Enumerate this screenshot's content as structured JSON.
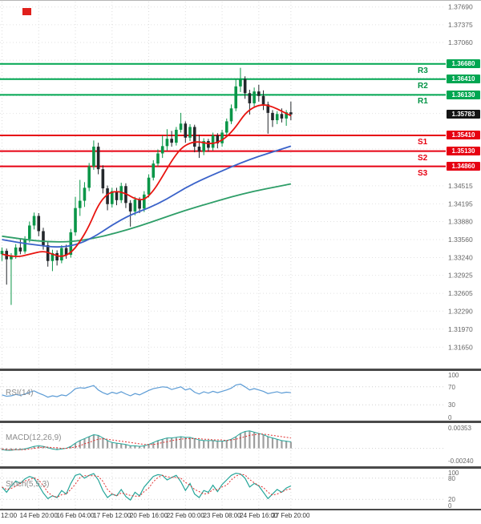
{
  "colors": {
    "level_resistance": "#00a651",
    "level_support": "#e60012",
    "current_price_badge": "#141414",
    "candle_up": "#0a9648",
    "candle_down": "#23272b",
    "ma_fast": "#e8140f",
    "ma_mid": "#3a62c9",
    "ma_slow": "#2e9e68",
    "rsi_line": "#5b9bd5",
    "macd_hist": "#9e9e9e",
    "macd_line": "#26a69a",
    "macd_signal": "#e03030",
    "stoch_k": "#26a69a",
    "stoch_d": "#e03030",
    "grid": "#e2e2e2",
    "vgrid": "#dcdcdc",
    "guide": "#cfcfcf",
    "axis_text": "#666666",
    "time_text": "#333333",
    "divider": "#4a4a4a",
    "logo_red": "#e0201c"
  },
  "chart_data": {
    "type": "candlestick",
    "y_axis": {
      "top": 1.378,
      "bottom": 1.3127,
      "visible_labels": [
        "1.37690",
        "1.37375",
        "1.37060",
        "1.34515",
        "1.34195",
        "1.33880",
        "1.33560",
        "1.33240",
        "1.32925",
        "1.32605",
        "1.32290",
        "1.31970",
        "1.31650"
      ],
      "grid_prices": [
        1.3769,
        1.37375,
        1.3706,
        1.36745,
        1.3643,
        1.36115,
        1.358,
        1.35485,
        1.3517,
        1.34855,
        1.34515,
        1.34195,
        1.3388,
        1.3356,
        1.3324,
        1.32925,
        1.32605,
        1.3229,
        1.3197,
        1.3165
      ]
    },
    "x_axis": {
      "tick_indices": [
        0,
        8,
        16,
        24,
        32,
        40,
        48,
        56,
        63
      ],
      "tick_labels": [
        "12:00",
        "14 Feb 20:00",
        "16 Feb 04:00",
        "17 Feb 12:00",
        "20 Feb 16:00",
        "22 Feb 00:00",
        "23 Feb 08:00",
        "24 Feb 16:00",
        "27 Feb 20:00"
      ]
    },
    "levels": [
      {
        "name": "R3",
        "kind": "resistance",
        "price": 1.3668,
        "value": "1.36680"
      },
      {
        "name": "R2",
        "kind": "resistance",
        "price": 1.3641,
        "value": "1.36410"
      },
      {
        "name": "R1",
        "kind": "resistance",
        "price": 1.3613,
        "value": "1.36130"
      },
      {
        "name": "S1",
        "kind": "support",
        "price": 1.3541,
        "value": "1.35410"
      },
      {
        "name": "S2",
        "kind": "support",
        "price": 1.3513,
        "value": "1.35130"
      },
      {
        "name": "S3",
        "kind": "support",
        "price": 1.3486,
        "value": "1.34860"
      }
    ],
    "current_price": {
      "price": 1.35783,
      "value": "1.35783"
    },
    "candles": [
      [
        1.333,
        1.3342,
        1.3318,
        1.3336
      ],
      [
        1.3336,
        1.334,
        1.3276,
        1.3321
      ],
      [
        1.3321,
        1.3332,
        1.324,
        1.3328
      ],
      [
        1.3328,
        1.3348,
        1.3322,
        1.3342
      ],
      [
        1.3342,
        1.3356,
        1.333,
        1.3335
      ],
      [
        1.3335,
        1.3362,
        1.3331,
        1.3357
      ],
      [
        1.3357,
        1.3388,
        1.3351,
        1.3381
      ],
      [
        1.3381,
        1.3404,
        1.3374,
        1.3398
      ],
      [
        1.3398,
        1.3403,
        1.3362,
        1.3371
      ],
      [
        1.3371,
        1.3377,
        1.3338,
        1.3346
      ],
      [
        1.3346,
        1.3352,
        1.3308,
        1.3318
      ],
      [
        1.3318,
        1.3338,
        1.33,
        1.3332
      ],
      [
        1.3332,
        1.3337,
        1.331,
        1.3319
      ],
      [
        1.3319,
        1.3346,
        1.3314,
        1.3341
      ],
      [
        1.3341,
        1.3347,
        1.3322,
        1.3329
      ],
      [
        1.3329,
        1.3375,
        1.3324,
        1.3369
      ],
      [
        1.3369,
        1.3432,
        1.3363,
        1.3412
      ],
      [
        1.3412,
        1.3462,
        1.3398,
        1.3425
      ],
      [
        1.3425,
        1.3458,
        1.3414,
        1.3448
      ],
      [
        1.3448,
        1.3492,
        1.3442,
        1.3486
      ],
      [
        1.3486,
        1.3532,
        1.348,
        1.3521
      ],
      [
        1.3521,
        1.3528,
        1.3472,
        1.3481
      ],
      [
        1.3481,
        1.3488,
        1.3438,
        1.3447
      ],
      [
        1.3447,
        1.3452,
        1.3408,
        1.3419
      ],
      [
        1.3419,
        1.3448,
        1.3413,
        1.3442
      ],
      [
        1.3442,
        1.3448,
        1.3417,
        1.3426
      ],
      [
        1.3426,
        1.3457,
        1.3421,
        1.3451
      ],
      [
        1.3451,
        1.3456,
        1.3412,
        1.3421
      ],
      [
        1.3421,
        1.3426,
        1.3379,
        1.3406
      ],
      [
        1.3406,
        1.3432,
        1.3399,
        1.3427
      ],
      [
        1.3427,
        1.3431,
        1.3403,
        1.3411
      ],
      [
        1.3411,
        1.3442,
        1.3405,
        1.3436
      ],
      [
        1.3436,
        1.3472,
        1.3431,
        1.3466
      ],
      [
        1.3466,
        1.3497,
        1.3461,
        1.3491
      ],
      [
        1.3491,
        1.3516,
        1.3486,
        1.3509
      ],
      [
        1.3509,
        1.3541,
        1.3501,
        1.3522
      ],
      [
        1.3522,
        1.3552,
        1.3514,
        1.3535
      ],
      [
        1.3535,
        1.3549,
        1.3521,
        1.3528
      ],
      [
        1.3528,
        1.3556,
        1.3523,
        1.3551
      ],
      [
        1.3551,
        1.3581,
        1.3546,
        1.3562
      ],
      [
        1.3562,
        1.3566,
        1.3528,
        1.3537
      ],
      [
        1.3537,
        1.3561,
        1.3531,
        1.3556
      ],
      [
        1.3556,
        1.356,
        1.3511,
        1.3521
      ],
      [
        1.3521,
        1.3542,
        1.3501,
        1.3512
      ],
      [
        1.3512,
        1.3536,
        1.3506,
        1.3531
      ],
      [
        1.3531,
        1.3535,
        1.3512,
        1.3519
      ],
      [
        1.3519,
        1.3546,
        1.3514,
        1.3541
      ],
      [
        1.3541,
        1.3545,
        1.3518,
        1.3527
      ],
      [
        1.3527,
        1.3551,
        1.3521,
        1.3546
      ],
      [
        1.3546,
        1.3571,
        1.3541,
        1.3566
      ],
      [
        1.3566,
        1.3596,
        1.3561,
        1.3589
      ],
      [
        1.3589,
        1.3642,
        1.3584,
        1.3628
      ],
      [
        1.3628,
        1.3661,
        1.3618,
        1.3641
      ],
      [
        1.3641,
        1.3646,
        1.3606,
        1.3616
      ],
      [
        1.3616,
        1.3622,
        1.3578,
        1.3598
      ],
      [
        1.3598,
        1.3626,
        1.3592,
        1.3619
      ],
      [
        1.3619,
        1.3631,
        1.3601,
        1.3611
      ],
      [
        1.3611,
        1.3621,
        1.3586,
        1.3596
      ],
      [
        1.3596,
        1.3601,
        1.3544,
        1.3581
      ],
      [
        1.3581,
        1.3586,
        1.3556,
        1.3568
      ],
      [
        1.3568,
        1.3584,
        1.3561,
        1.3579
      ],
      [
        1.3579,
        1.3589,
        1.3564,
        1.3571
      ],
      [
        1.3571,
        1.3586,
        1.3558,
        1.3582
      ],
      [
        1.3582,
        1.3601,
        1.3568,
        1.35783
      ]
    ],
    "moving_averages": {
      "fast_red": [
        [
          0,
          1.333
        ],
        [
          3,
          1.3324
        ],
        [
          6,
          1.333
        ],
        [
          9,
          1.3336
        ],
        [
          11,
          1.333
        ],
        [
          13,
          1.3325
        ],
        [
          15,
          1.3332
        ],
        [
          17,
          1.3352
        ],
        [
          19,
          1.338
        ],
        [
          21,
          1.3418
        ],
        [
          23,
          1.3438
        ],
        [
          25,
          1.3442
        ],
        [
          27,
          1.3438
        ],
        [
          29,
          1.3428
        ],
        [
          31,
          1.3426
        ],
        [
          33,
          1.3442
        ],
        [
          35,
          1.3468
        ],
        [
          37,
          1.3496
        ],
        [
          39,
          1.3518
        ],
        [
          41,
          1.3528
        ],
        [
          43,
          1.353
        ],
        [
          45,
          1.3526
        ],
        [
          47,
          1.3528
        ],
        [
          49,
          1.3538
        ],
        [
          51,
          1.3556
        ],
        [
          53,
          1.358
        ],
        [
          55,
          1.3592
        ],
        [
          57,
          1.3596
        ],
        [
          59,
          1.3592
        ],
        [
          61,
          1.3584
        ],
        [
          63,
          1.3576
        ]
      ],
      "mid_blue": [
        [
          0,
          1.3356
        ],
        [
          4,
          1.335
        ],
        [
          8,
          1.3346
        ],
        [
          12,
          1.3342
        ],
        [
          16,
          1.3346
        ],
        [
          20,
          1.336
        ],
        [
          24,
          1.3382
        ],
        [
          28,
          1.34
        ],
        [
          32,
          1.3412
        ],
        [
          36,
          1.3428
        ],
        [
          40,
          1.3448
        ],
        [
          44,
          1.3464
        ],
        [
          48,
          1.3478
        ],
        [
          52,
          1.3492
        ],
        [
          56,
          1.3504
        ],
        [
          60,
          1.3514
        ],
        [
          63,
          1.3522
        ]
      ],
      "slow_green": [
        [
          0,
          1.3362
        ],
        [
          5,
          1.3356
        ],
        [
          10,
          1.3352
        ],
        [
          15,
          1.3352
        ],
        [
          20,
          1.3358
        ],
        [
          25,
          1.3368
        ],
        [
          30,
          1.338
        ],
        [
          35,
          1.3394
        ],
        [
          40,
          1.3408
        ],
        [
          45,
          1.342
        ],
        [
          50,
          1.3432
        ],
        [
          55,
          1.3442
        ],
        [
          60,
          1.345
        ],
        [
          63,
          1.3455
        ]
      ]
    },
    "indicators": {
      "rsi": {
        "label": "RSI(14)",
        "scale_labels": [
          "100",
          "70",
          "30",
          "0"
        ],
        "guides": [
          70,
          30
        ],
        "values": [
          52,
          49,
          50,
          53,
          51,
          54,
          58,
          61,
          56,
          52,
          47,
          50,
          48,
          52,
          50,
          57,
          66,
          68,
          67,
          70,
          73,
          63,
          57,
          53,
          58,
          55,
          59,
          54,
          50,
          55,
          52,
          57,
          62,
          66,
          68,
          70,
          69,
          64,
          67,
          70,
          63,
          66,
          58,
          54,
          59,
          56,
          60,
          57,
          60,
          63,
          67,
          74,
          76,
          70,
          63,
          66,
          63,
          60,
          55,
          57,
          59,
          56,
          58,
          57
        ]
      },
      "macd": {
        "label": "MACD(12,26,9)",
        "scale_labels": [
          "0.00353",
          "-0.00240"
        ],
        "range": [
          0.00353,
          -0.0024
        ],
        "unit": 0.0001,
        "macd": [
          -2,
          -3,
          -3,
          -2,
          -2,
          -1,
          1,
          3,
          4,
          3,
          1,
          -1,
          -2,
          -1,
          0,
          3,
          8,
          12,
          15,
          18,
          21,
          20,
          16,
          12,
          9,
          8,
          7,
          6,
          4,
          4,
          3,
          4,
          6,
          9,
          12,
          14,
          16,
          16,
          17,
          18,
          17,
          17,
          15,
          13,
          12,
          12,
          12,
          11,
          11,
          12,
          14,
          18,
          23,
          26,
          27,
          25,
          23,
          21,
          18,
          16,
          14,
          12,
          11,
          10
        ],
        "signal": [
          -1,
          -2,
          -2,
          -2,
          -2,
          -2,
          -1,
          0,
          1,
          2,
          2,
          1,
          1,
          0,
          0,
          1,
          2,
          4,
          7,
          9,
          12,
          14,
          15,
          14,
          13,
          12,
          11,
          10,
          9,
          8,
          7,
          6,
          6,
          6,
          7,
          9,
          10,
          12,
          13,
          14,
          15,
          15,
          15,
          15,
          14,
          14,
          13,
          13,
          13,
          12,
          13,
          14,
          16,
          18,
          20,
          21,
          22,
          22,
          21,
          20,
          19,
          18,
          17,
          16
        ]
      },
      "stoch": {
        "label": "Stoch(5,5,3)",
        "scale_labels": [
          "100",
          "80",
          "20",
          "0"
        ],
        "guides": [
          80,
          20
        ],
        "k": [
          55,
          40,
          58,
          72,
          65,
          78,
          85,
          80,
          60,
          38,
          22,
          30,
          25,
          45,
          35,
          65,
          88,
          92,
          80,
          88,
          93,
          75,
          45,
          25,
          35,
          30,
          48,
          28,
          18,
          40,
          30,
          55,
          70,
          85,
          90,
          88,
          75,
          82,
          88,
          70,
          45,
          65,
          35,
          25,
          45,
          40,
          60,
          42,
          62,
          75,
          88,
          94,
          92,
          80,
          55,
          65,
          58,
          40,
          22,
          35,
          48,
          40,
          52,
          58
        ],
        "d": [
          55,
          48,
          51,
          57,
          65,
          72,
          76,
          81,
          75,
          59,
          40,
          30,
          26,
          33,
          35,
          48,
          63,
          82,
          87,
          87,
          87,
          85,
          71,
          48,
          35,
          30,
          38,
          35,
          31,
          29,
          29,
          42,
          52,
          70,
          82,
          88,
          84,
          82,
          82,
          80,
          68,
          60,
          48,
          42,
          35,
          37,
          48,
          47,
          55,
          60,
          75,
          86,
          91,
          89,
          76,
          67,
          59,
          54,
          40,
          32,
          35,
          41,
          47,
          50
        ]
      }
    }
  }
}
